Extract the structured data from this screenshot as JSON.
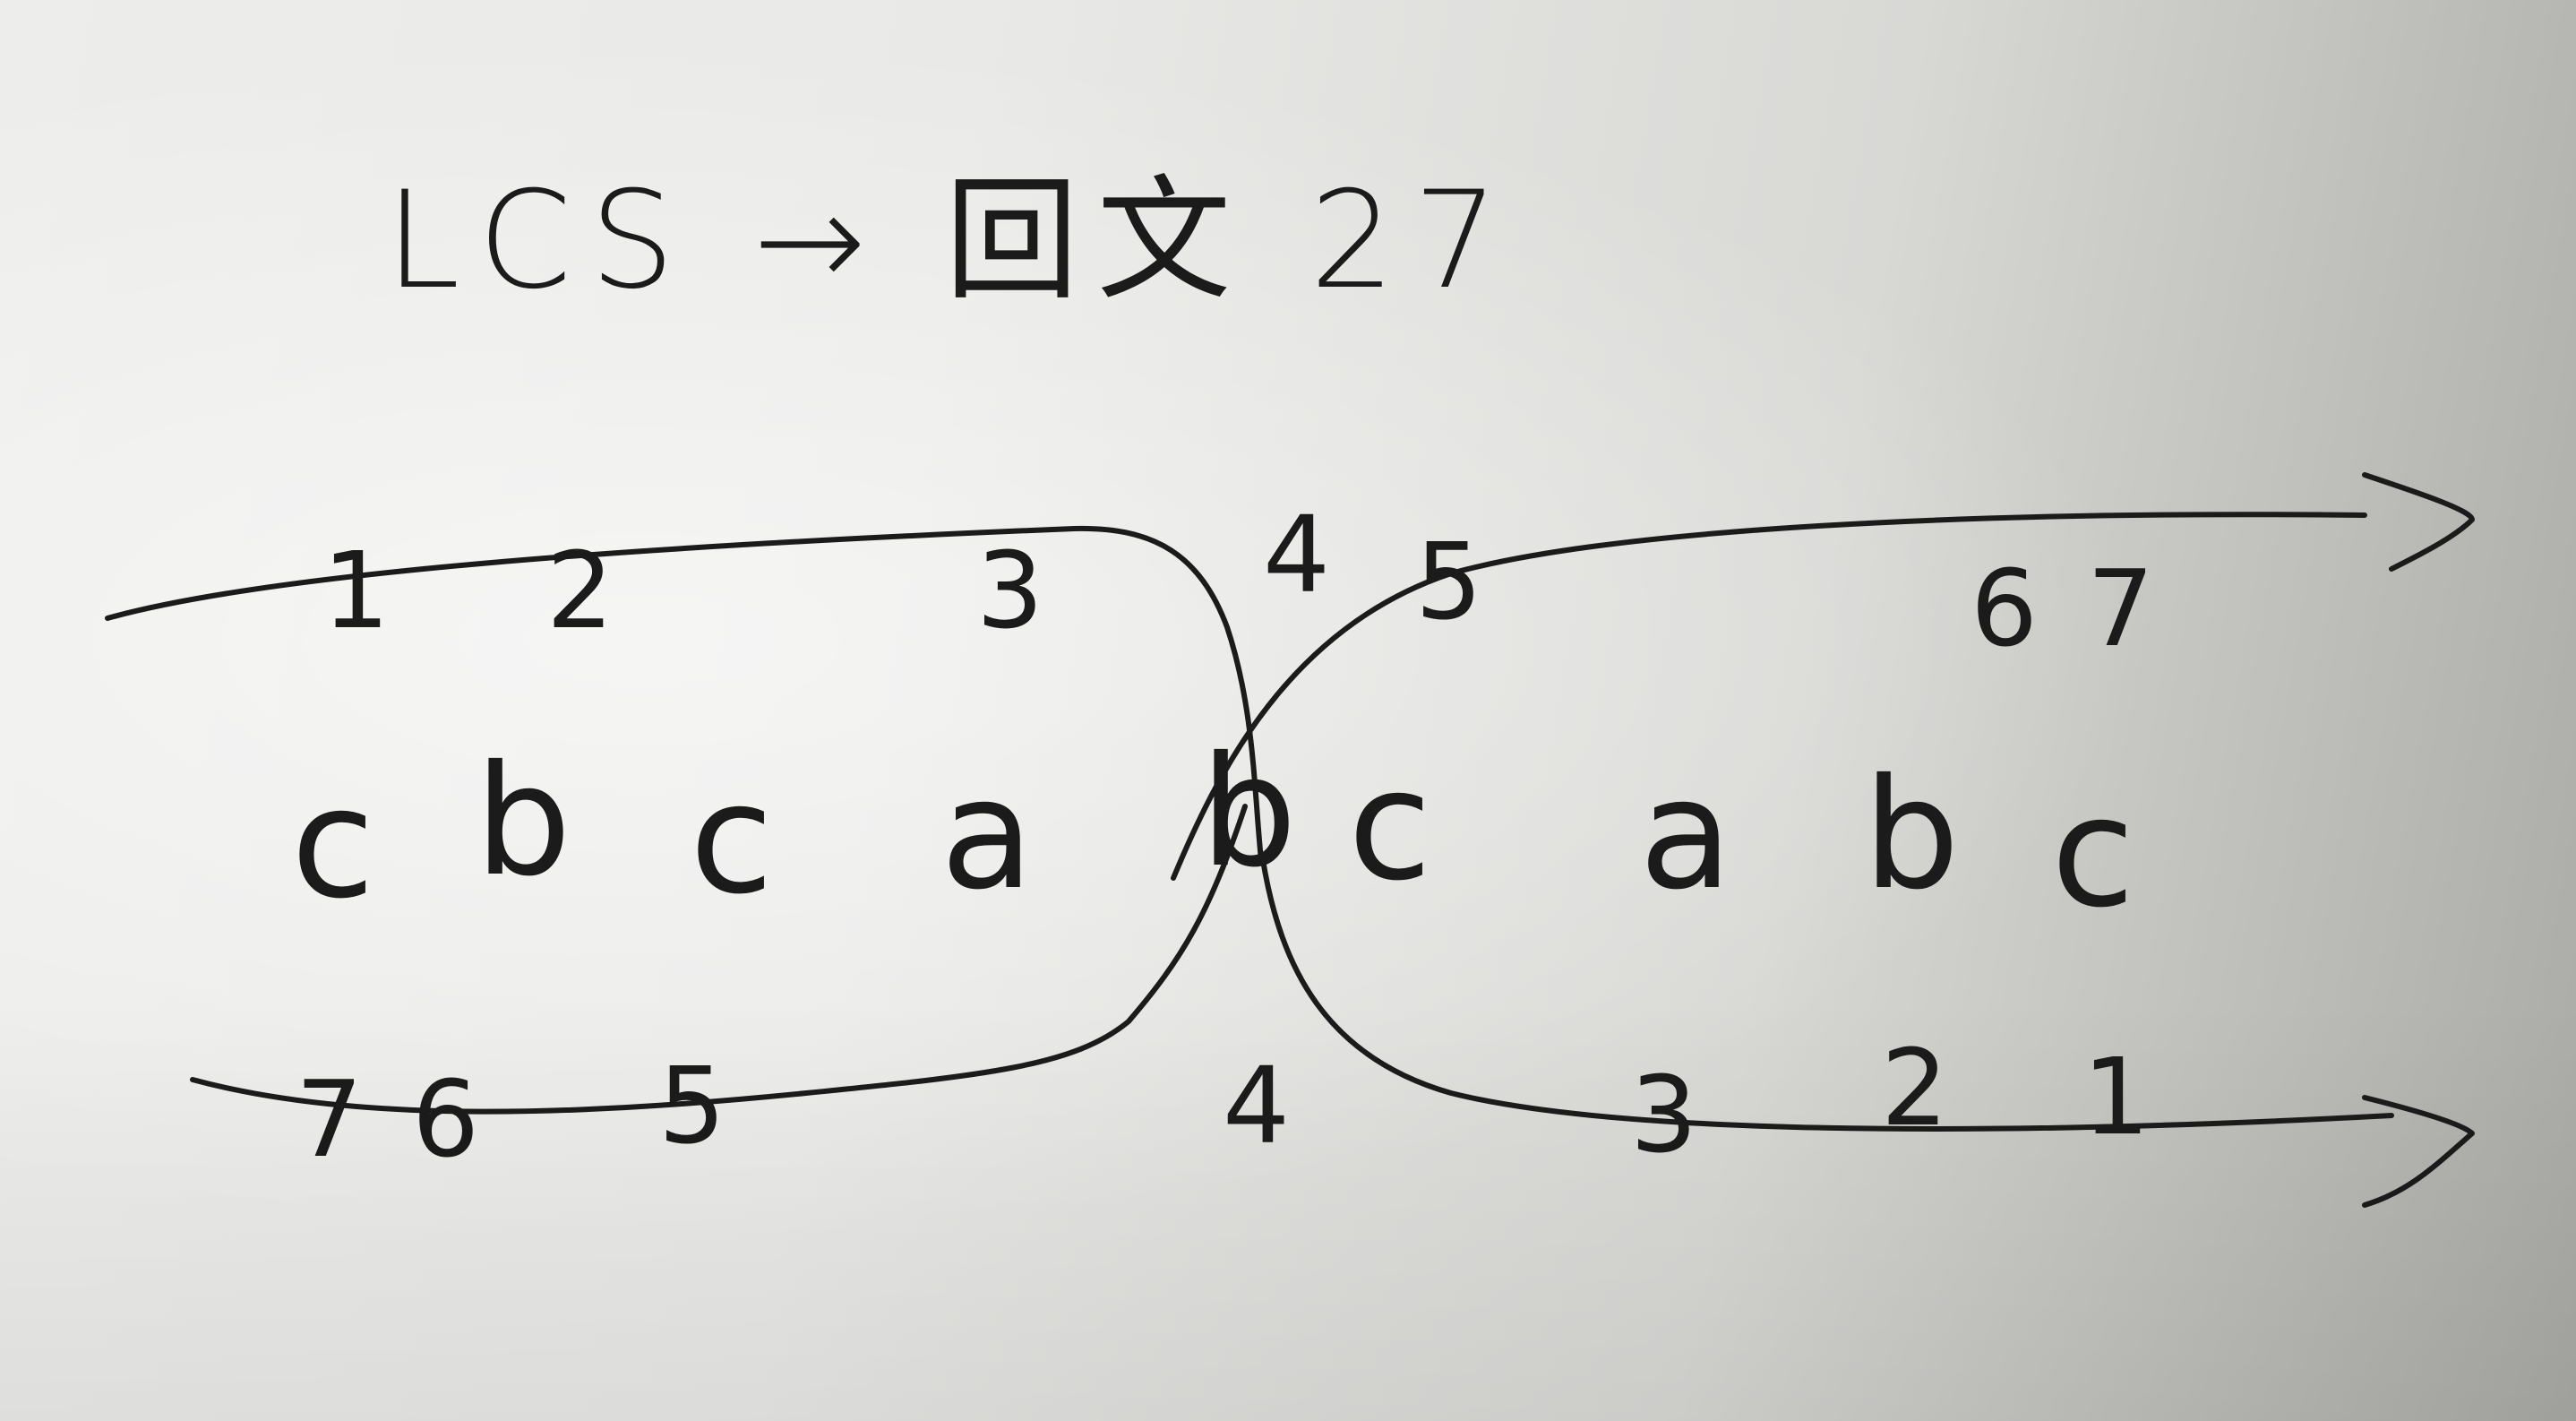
{
  "title": "LCS → 回文 27",
  "top_numbers": [
    "1",
    "2",
    "3",
    "4",
    "5",
    "6",
    "7"
  ],
  "letters": [
    "c",
    "b",
    "c",
    "a",
    "b",
    "c",
    "a",
    "b",
    "c"
  ],
  "bottom_numbers": [
    "7",
    "6",
    "5",
    "4",
    "3",
    "2",
    "1"
  ],
  "ink_color": "#1b1b1b",
  "paper_color": "#e9e9e7"
}
